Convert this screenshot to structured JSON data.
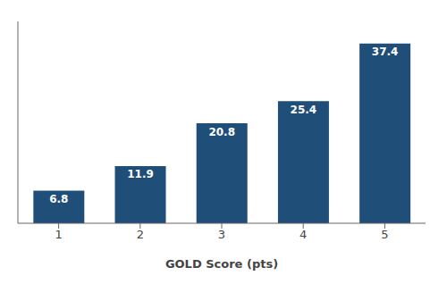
{
  "chart_data": {
    "type": "bar",
    "categories": [
      "1",
      "2",
      "3",
      "4",
      "5"
    ],
    "values": [
      6.8,
      11.9,
      20.8,
      25.4,
      37.4
    ],
    "color": "#1F4E79",
    "xlabel": "GOLD Score (pts)",
    "ylim": [
      0,
      42
    ],
    "data_labels": true,
    "tick_labels": "x"
  }
}
